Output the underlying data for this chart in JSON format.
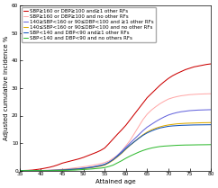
{
  "title": "",
  "xlabel": "Attained age",
  "ylabel": "Adjusted cumulative incidence %",
  "xlim": [
    35,
    80
  ],
  "ylim": [
    0,
    60
  ],
  "xticks": [
    35,
    40,
    45,
    50,
    55,
    60,
    65,
    70,
    75,
    80
  ],
  "yticks": [
    0,
    10,
    20,
    30,
    40,
    50,
    60
  ],
  "series": [
    {
      "label": "SBP≥160 or DBP≥100 and≥1 other RFs",
      "color": "#cc0000",
      "ages": [
        35,
        36,
        37,
        38,
        39,
        40,
        41,
        42,
        43,
        44,
        45,
        46,
        47,
        48,
        49,
        50,
        51,
        52,
        53,
        54,
        55,
        56,
        57,
        58,
        59,
        60,
        61,
        62,
        63,
        64,
        65,
        66,
        67,
        68,
        69,
        70,
        71,
        72,
        73,
        74,
        75,
        76,
        77,
        78,
        79,
        80
      ],
      "values": [
        0.0,
        0.05,
        0.1,
        0.2,
        0.4,
        0.6,
        0.9,
        1.2,
        1.6,
        2.1,
        2.7,
        3.1,
        3.5,
        3.9,
        4.3,
        4.8,
        5.4,
        6.0,
        6.6,
        7.3,
        8.2,
        9.8,
        11.5,
        13.2,
        14.8,
        16.5,
        18.5,
        20.5,
        22.5,
        24.5,
        26.5,
        28.0,
        29.5,
        31.0,
        32.3,
        33.5,
        34.5,
        35.3,
        36.0,
        36.7,
        37.2,
        37.7,
        38.0,
        38.3,
        38.6,
        38.8
      ]
    },
    {
      "label": "SBP≥160 or DBP≥100 and no other RFs",
      "color": "#ffaaaa",
      "ages": [
        35,
        36,
        37,
        38,
        39,
        40,
        41,
        42,
        43,
        44,
        45,
        46,
        47,
        48,
        49,
        50,
        51,
        52,
        53,
        54,
        55,
        56,
        57,
        58,
        59,
        60,
        61,
        62,
        63,
        64,
        65,
        66,
        67,
        68,
        69,
        70,
        71,
        72,
        73,
        74,
        75,
        76,
        77,
        78,
        79,
        80
      ],
      "values": [
        0.0,
        0.0,
        0.0,
        0.0,
        0.0,
        0.05,
        0.1,
        0.15,
        0.2,
        0.3,
        0.5,
        0.6,
        0.8,
        1.0,
        1.2,
        1.4,
        1.6,
        1.9,
        2.2,
        2.5,
        2.9,
        3.5,
        4.5,
        5.5,
        7.0,
        9.0,
        11.0,
        13.5,
        16.0,
        18.5,
        20.5,
        22.0,
        23.2,
        24.3,
        25.2,
        26.0,
        26.5,
        26.9,
        27.2,
        27.4,
        27.6,
        27.7,
        27.8,
        27.85,
        27.9,
        27.95
      ]
    },
    {
      "label": "140≥SBP<160 or 90≤DBP<100 and ≥1 other RFs",
      "color": "#6666dd",
      "ages": [
        35,
        36,
        37,
        38,
        39,
        40,
        41,
        42,
        43,
        44,
        45,
        46,
        47,
        48,
        49,
        50,
        51,
        52,
        53,
        54,
        55,
        56,
        57,
        58,
        59,
        60,
        61,
        62,
        63,
        64,
        65,
        66,
        67,
        68,
        69,
        70,
        71,
        72,
        73,
        74,
        75,
        76,
        77,
        78,
        79,
        80
      ],
      "values": [
        0.0,
        0.0,
        0.0,
        0.0,
        0.0,
        0.0,
        0.05,
        0.1,
        0.15,
        0.2,
        0.3,
        0.4,
        0.5,
        0.6,
        0.75,
        0.9,
        1.1,
        1.3,
        1.6,
        1.9,
        2.3,
        3.0,
        4.0,
        5.5,
        7.0,
        8.5,
        10.0,
        11.5,
        13.0,
        14.5,
        15.8,
        16.8,
        17.8,
        18.7,
        19.5,
        20.2,
        20.7,
        21.1,
        21.4,
        21.6,
        21.8,
        21.9,
        22.0,
        22.05,
        22.1,
        22.15
      ]
    },
    {
      "label": "140≤SBP<160 or 90≤DBP<100 and no other RFs",
      "color": "#ddaa00",
      "ages": [
        35,
        36,
        37,
        38,
        39,
        40,
        41,
        42,
        43,
        44,
        45,
        46,
        47,
        48,
        49,
        50,
        51,
        52,
        53,
        54,
        55,
        56,
        57,
        58,
        59,
        60,
        61,
        62,
        63,
        64,
        65,
        66,
        67,
        68,
        69,
        70,
        71,
        72,
        73,
        74,
        75,
        76,
        77,
        78,
        79,
        80
      ],
      "values": [
        0.0,
        0.0,
        0.0,
        0.0,
        0.0,
        0.0,
        0.0,
        0.05,
        0.1,
        0.15,
        0.2,
        0.3,
        0.4,
        0.5,
        0.6,
        0.75,
        0.9,
        1.1,
        1.35,
        1.6,
        2.0,
        2.8,
        3.8,
        5.0,
        6.3,
        7.8,
        9.2,
        10.5,
        11.8,
        13.0,
        14.0,
        14.8,
        15.4,
        15.9,
        16.3,
        16.6,
        16.8,
        17.0,
        17.1,
        17.2,
        17.25,
        17.3,
        17.35,
        17.4,
        17.42,
        17.45
      ]
    },
    {
      "label": "SBP<140 and DBP<90 and≥1 other RFs",
      "color": "#1155bb",
      "ages": [
        35,
        36,
        37,
        38,
        39,
        40,
        41,
        42,
        43,
        44,
        45,
        46,
        47,
        48,
        49,
        50,
        51,
        52,
        53,
        54,
        55,
        56,
        57,
        58,
        59,
        60,
        61,
        62,
        63,
        64,
        65,
        66,
        67,
        68,
        69,
        70,
        71,
        72,
        73,
        74,
        75,
        76,
        77,
        78,
        79,
        80
      ],
      "values": [
        0.0,
        0.0,
        0.0,
        0.0,
        0.0,
        0.0,
        0.0,
        0.05,
        0.1,
        0.15,
        0.2,
        0.3,
        0.4,
        0.5,
        0.65,
        0.8,
        1.0,
        1.2,
        1.5,
        1.8,
        2.2,
        3.0,
        4.0,
        5.2,
        6.5,
        8.0,
        9.3,
        10.5,
        11.7,
        12.8,
        13.7,
        14.4,
        15.0,
        15.5,
        15.8,
        16.1,
        16.25,
        16.35,
        16.45,
        16.5,
        16.55,
        16.6,
        16.62,
        16.64,
        16.66,
        16.68
      ]
    },
    {
      "label": "SBP<140 and DBP<90 and no others RFs",
      "color": "#33bb33",
      "ages": [
        35,
        36,
        37,
        38,
        39,
        40,
        41,
        42,
        43,
        44,
        45,
        46,
        47,
        48,
        49,
        50,
        51,
        52,
        53,
        54,
        55,
        56,
        57,
        58,
        59,
        60,
        61,
        62,
        63,
        64,
        65,
        66,
        67,
        68,
        69,
        70,
        71,
        72,
        73,
        74,
        75,
        76,
        77,
        78,
        79,
        80
      ],
      "values": [
        0.0,
        0.0,
        0.0,
        0.0,
        0.0,
        0.0,
        0.0,
        0.0,
        0.0,
        0.0,
        0.05,
        0.1,
        0.15,
        0.2,
        0.3,
        0.4,
        0.5,
        0.6,
        0.75,
        0.9,
        1.1,
        1.5,
        2.0,
        2.8,
        3.6,
        4.5,
        5.3,
        6.0,
        6.7,
        7.3,
        7.8,
        8.2,
        8.5,
        8.75,
        8.9,
        9.0,
        9.1,
        9.2,
        9.25,
        9.3,
        9.32,
        9.35,
        9.38,
        9.4,
        9.42,
        9.45
      ]
    }
  ],
  "legend_fontsize": 4.0,
  "axis_fontsize": 5.0,
  "tick_fontsize": 4.2,
  "linewidth": 0.75
}
